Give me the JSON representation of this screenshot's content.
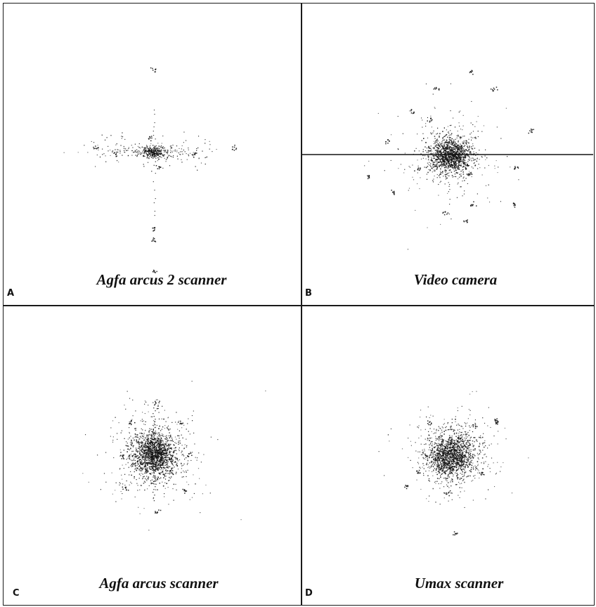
{
  "figure": {
    "panels": [
      {
        "letter": "A",
        "caption": "Agfa arcus 2 scanner"
      },
      {
        "letter": "B",
        "caption": "Video camera"
      },
      {
        "letter": "C",
        "caption": "Agfa arcus scanner"
      },
      {
        "letter": "D",
        "caption": "Umax scanner"
      }
    ]
  }
}
